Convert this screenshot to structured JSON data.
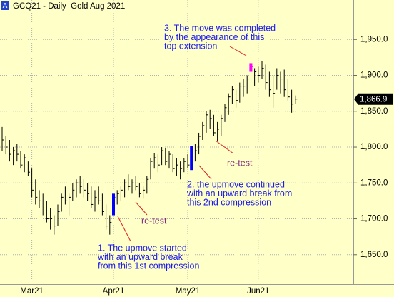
{
  "header": {
    "badge": "A",
    "title": "GCQ21 - Daily  Gold Aug 2021"
  },
  "chart_data": {
    "type": "ohlc",
    "color": "#000000",
    "categories": [
      null,
      null,
      null,
      null,
      null,
      null,
      null,
      null,
      "Mar21",
      null,
      null,
      null,
      null,
      null,
      null,
      null,
      null,
      null,
      null,
      null,
      null,
      null,
      null,
      null,
      null,
      null,
      null,
      null,
      null,
      null,
      "Apr21",
      null,
      null,
      null,
      null,
      null,
      null,
      null,
      null,
      null,
      null,
      null,
      null,
      null,
      null,
      null,
      null,
      null,
      null,
      null,
      "May21",
      null,
      null,
      null,
      null,
      null,
      null,
      null,
      null,
      null,
      null,
      null,
      null,
      null,
      null,
      null,
      null,
      null,
      null,
      "Jun21",
      null,
      null,
      null,
      null,
      null,
      null,
      null,
      null,
      null,
      null
    ],
    "high": [
      1828,
      1815,
      1810,
      1800,
      1805,
      1795,
      1790,
      1780,
      1770,
      1755,
      1740,
      1735,
      1725,
      1715,
      1705,
      1720,
      1735,
      1745,
      1735,
      1750,
      1755,
      1760,
      1755,
      1750,
      1745,
      1740,
      1745,
      1735,
      1720,
      1705,
      1735,
      1740,
      1745,
      1755,
      1762,
      1755,
      1760,
      1750,
      1745,
      1760,
      1785,
      1792,
      1790,
      1800,
      1798,
      1795,
      1790,
      1785,
      1780,
      1785,
      1790,
      1802,
      1805,
      1820,
      1835,
      1850,
      1852,
      1845,
      1835,
      1845,
      1860,
      1875,
      1885,
      1880,
      1890,
      1895,
      1900,
      1917,
      1910,
      1912,
      1920,
      1915,
      1905,
      1900,
      1910,
      1905,
      1908,
      1895,
      1880,
      1872
    ],
    "low": [
      1795,
      1790,
      1780,
      1775,
      1780,
      1770,
      1765,
      1760,
      1730,
      1720,
      1715,
      1705,
      1695,
      1685,
      1678,
      1690,
      1710,
      1720,
      1705,
      1725,
      1730,
      1735,
      1730,
      1725,
      1715,
      1710,
      1720,
      1705,
      1685,
      1678,
      1705,
      1720,
      1725,
      1730,
      1740,
      1735,
      1740,
      1730,
      1728,
      1735,
      1755,
      1770,
      1765,
      1775,
      1775,
      1770,
      1765,
      1760,
      1755,
      1765,
      1770,
      1768,
      1780,
      1790,
      1810,
      1820,
      1825,
      1815,
      1808,
      1815,
      1835,
      1845,
      1860,
      1855,
      1862,
      1870,
      1875,
      1905,
      1885,
      1890,
      1895,
      1880,
      1870,
      1855,
      1880,
      1875,
      1870,
      1865,
      1848,
      1860
    ],
    "close": [
      1810,
      1800,
      1790,
      1795,
      1790,
      1775,
      1785,
      1765,
      1740,
      1730,
      1725,
      1715,
      1700,
      1700,
      1690,
      1710,
      1730,
      1725,
      1730,
      1740,
      1750,
      1745,
      1740,
      1735,
      1720,
      1730,
      1725,
      1710,
      1690,
      1695,
      1730,
      1735,
      1740,
      1750,
      1745,
      1750,
      1745,
      1735,
      1740,
      1755,
      1780,
      1785,
      1775,
      1795,
      1780,
      1790,
      1770,
      1775,
      1770,
      1780,
      1775,
      1800,
      1795,
      1815,
      1830,
      1845,
      1840,
      1820,
      1825,
      1840,
      1855,
      1870,
      1880,
      1865,
      1885,
      1885,
      1895,
      1912,
      1905,
      1900,
      1910,
      1890,
      1880,
      1875,
      1900,
      1895,
      1880,
      1870,
      1860,
      1867
    ],
    "highlights": [
      {
        "index": 30,
        "color": "#0000ff"
      },
      {
        "index": 51,
        "color": "#0000ff"
      },
      {
        "index": 67,
        "color": "#ff00ff"
      }
    ],
    "ylim": [
      1609,
      2005
    ],
    "yticks": [
      {
        "value": 1650,
        "label": "1,650.0"
      },
      {
        "value": 1700,
        "label": "1,700.0"
      },
      {
        "value": 1750,
        "label": "1,750.0"
      },
      {
        "value": 1800,
        "label": "1,800.0"
      },
      {
        "value": 1850,
        "label": "1,850.0"
      },
      {
        "value": 1900,
        "label": "1,900.0"
      },
      {
        "value": 1950,
        "label": "1,950.0"
      }
    ],
    "last_price": {
      "value": 1866.9,
      "label": "1,866.9"
    },
    "grid": true,
    "annotations": [
      [
        "3. The move was completed",
        "by the appearance of this",
        "top extension"
      ],
      [
        "1. The upmove started",
        "with an upward break",
        "from this 1st compression"
      ],
      [
        "2. the upmove continued",
        "with an upward break from",
        "this 2nd compression"
      ],
      [
        "re-test"
      ],
      [
        "re-test"
      ]
    ]
  }
}
